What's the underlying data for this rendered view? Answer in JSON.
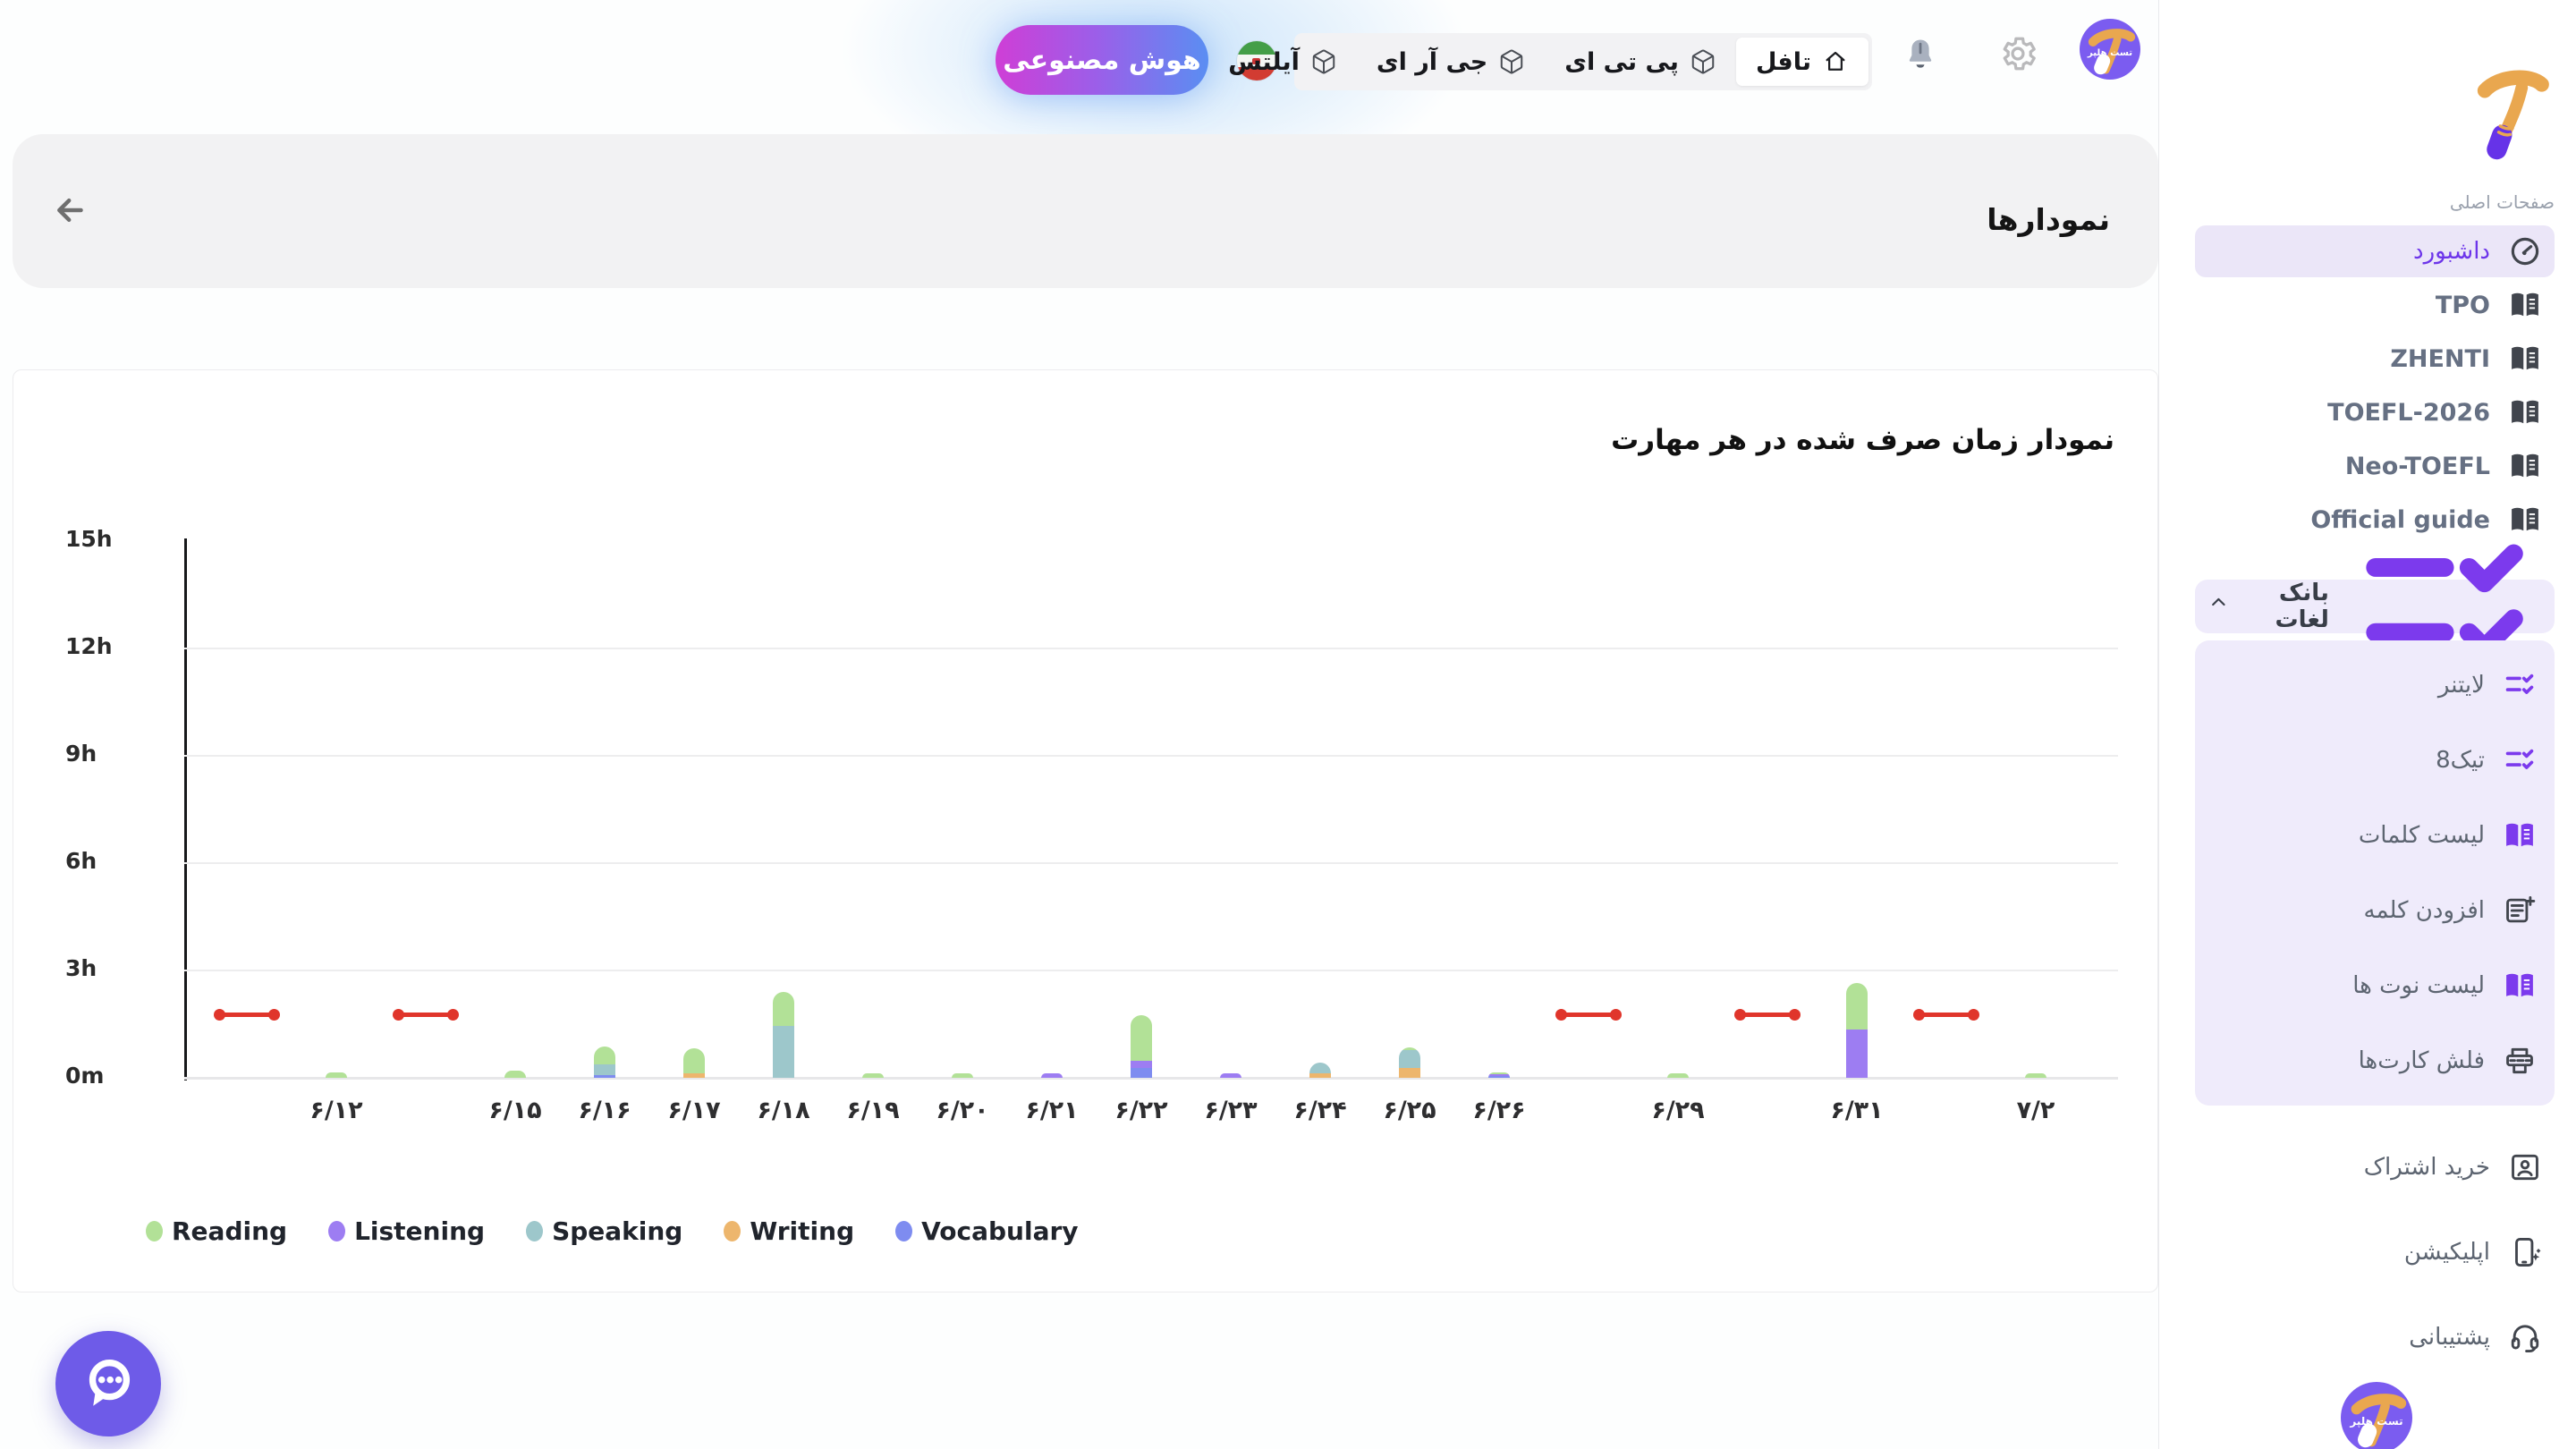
{
  "topbar": {
    "ai_button_label": "هوش مصنوعی",
    "flag": "iran-flag",
    "tabs": [
      {
        "label": "تافل",
        "icon": "home",
        "active": true
      },
      {
        "label": "پی تی ای",
        "icon": "cube",
        "active": false
      },
      {
        "label": "جی آر ای",
        "icon": "cube",
        "active": false
      },
      {
        "label": "آیلتس",
        "icon": "cube",
        "active": false
      }
    ],
    "icons": [
      "bell-icon",
      "gear-icon",
      "avatar"
    ]
  },
  "header": {
    "title": "نمودارها",
    "back_icon": "arrow-left-icon"
  },
  "sidebar": {
    "section_label": "صفحات اصلی",
    "main_items": [
      {
        "label": "داشبورد",
        "icon": "speedometer",
        "tone": "dark",
        "active": true
      },
      {
        "label": "TPO",
        "icon": "book",
        "tone": "dark"
      },
      {
        "label": "ZHENTI",
        "icon": "book",
        "tone": "dark"
      },
      {
        "label": "TOEFL-2026",
        "icon": "book",
        "tone": "dark"
      },
      {
        "label": "Neo-TOEFL",
        "icon": "book",
        "tone": "dark"
      },
      {
        "label": "Official guide",
        "icon": "book",
        "tone": "dark"
      }
    ],
    "word_bank": {
      "label": "بانک لغات",
      "icon": "checklist",
      "tone": "purple",
      "chevron": "chevron-up-icon"
    },
    "word_bank_items": [
      {
        "label": "لایتنر",
        "icon": "checklist",
        "tone": "purple"
      },
      {
        "label": "تیک8",
        "icon": "checklist",
        "tone": "purple"
      },
      {
        "label": "لیست کلمات",
        "icon": "book",
        "tone": "purple"
      },
      {
        "label": "افزودن کلمه",
        "icon": "note-add",
        "tone": "dark"
      },
      {
        "label": "لیست نوت ها",
        "icon": "book",
        "tone": "purple"
      },
      {
        "label": "فلش کارت‌ها",
        "icon": "flashcard",
        "tone": "dark"
      }
    ],
    "footer_items": [
      {
        "label": "خرید اشتراک",
        "icon": "id-card",
        "tone": "dark"
      },
      {
        "label": "اپلیکیشن",
        "icon": "phone-sparkle",
        "tone": "dark"
      },
      {
        "label": "پشتیبانی",
        "icon": "headset",
        "tone": "dark"
      }
    ],
    "brand": {
      "name": "تست هلپر"
    }
  },
  "chart_data": {
    "type": "bar",
    "stacked": true,
    "title": "نمودار زمان صرف شده در هر مهارت",
    "xlabel": "",
    "ylabel": "",
    "y_ticks": [
      "15h",
      "12h",
      "9h",
      "6h",
      "3h",
      "0m"
    ],
    "y_max_hours": 15,
    "grid": true,
    "legend_position": "bottom-left",
    "series": [
      {
        "name": "Reading",
        "color": "#b2e197"
      },
      {
        "name": "Listening",
        "color": "#9d7df2"
      },
      {
        "name": "Speaking",
        "color": "#9dc7cb"
      },
      {
        "name": "Writing",
        "color": "#edb66d"
      },
      {
        "name": "Vocabulary",
        "color": "#7e8cf0"
      }
    ],
    "marker": {
      "value_hours": 1.75,
      "color": "#e0352b"
    },
    "slots": [
      {
        "label": "",
        "marker": true
      },
      {
        "label": "۶/۱۲",
        "stack": [
          {
            "series": "Reading",
            "hours": 0.15
          }
        ]
      },
      {
        "label": "",
        "marker": true
      },
      {
        "label": "۶/۱۵",
        "stack": [
          {
            "series": "Reading",
            "hours": 0.2
          }
        ]
      },
      {
        "label": "۶/۱۶",
        "stack": [
          {
            "series": "Vocabulary",
            "hours": 0.08
          },
          {
            "series": "Speaking",
            "hours": 0.3
          },
          {
            "series": "Reading",
            "hours": 0.5
          }
        ]
      },
      {
        "label": "۶/۱۷",
        "stack": [
          {
            "series": "Writing",
            "hours": 0.12
          },
          {
            "series": "Reading",
            "hours": 0.7
          }
        ]
      },
      {
        "label": "۶/۱۸",
        "stack": [
          {
            "series": "Speaking",
            "hours": 1.45
          },
          {
            "series": "Reading",
            "hours": 0.95
          }
        ]
      },
      {
        "label": "۶/۱۹",
        "stack": [
          {
            "series": "Reading",
            "hours": 0.08
          }
        ]
      },
      {
        "label": "۶/۲۰",
        "stack": [
          {
            "series": "Reading",
            "hours": 0.08
          }
        ]
      },
      {
        "label": "۶/۲۱",
        "stack": [
          {
            "series": "Listening",
            "hours": 0.1
          }
        ]
      },
      {
        "label": "۶/۲۲",
        "stack": [
          {
            "series": "Vocabulary",
            "hours": 0.28
          },
          {
            "series": "Listening",
            "hours": 0.2
          },
          {
            "series": "Reading",
            "hours": 1.27
          }
        ]
      },
      {
        "label": "۶/۲۳",
        "stack": [
          {
            "series": "Listening",
            "hours": 0.06
          }
        ]
      },
      {
        "label": "۶/۲۴",
        "stack": [
          {
            "series": "Writing",
            "hours": 0.12
          },
          {
            "series": "Speaking",
            "hours": 0.3
          }
        ]
      },
      {
        "label": "۶/۲۵",
        "stack": [
          {
            "series": "Writing",
            "hours": 0.27
          },
          {
            "series": "Speaking",
            "hours": 0.5
          },
          {
            "series": "Reading",
            "hours": 0.07
          }
        ]
      },
      {
        "label": "۶/۲۶",
        "stack": [
          {
            "series": "Vocabulary",
            "hours": 0.05
          },
          {
            "series": "Listening",
            "hours": 0.04
          },
          {
            "series": "Reading",
            "hours": 0.06
          }
        ]
      },
      {
        "label": "",
        "marker": true
      },
      {
        "label": "۶/۲۹",
        "stack": [
          {
            "series": "Reading",
            "hours": 0.08
          }
        ]
      },
      {
        "label": "",
        "marker": true
      },
      {
        "label": "۶/۳۱",
        "stack": [
          {
            "series": "Listening",
            "hours": 1.35
          },
          {
            "series": "Reading",
            "hours": 1.3
          }
        ]
      },
      {
        "label": "",
        "marker": true
      },
      {
        "label": "۷/۲",
        "stack": [
          {
            "series": "Reading",
            "hours": 0.05
          }
        ]
      }
    ]
  },
  "chat_button": {
    "icon": "chat-bubble-icon",
    "color": "#6e5be8"
  },
  "colors": {
    "accent_purple": "#7c3aed",
    "active_item_bg": "#ebe6f8",
    "tabstrip_bg": "#f2f2f4",
    "header_bg": "#f2f2f3",
    "marker_red": "#e0352b",
    "brand_purple": "#7b5cf0",
    "brand_orange": "#e9a74f"
  }
}
